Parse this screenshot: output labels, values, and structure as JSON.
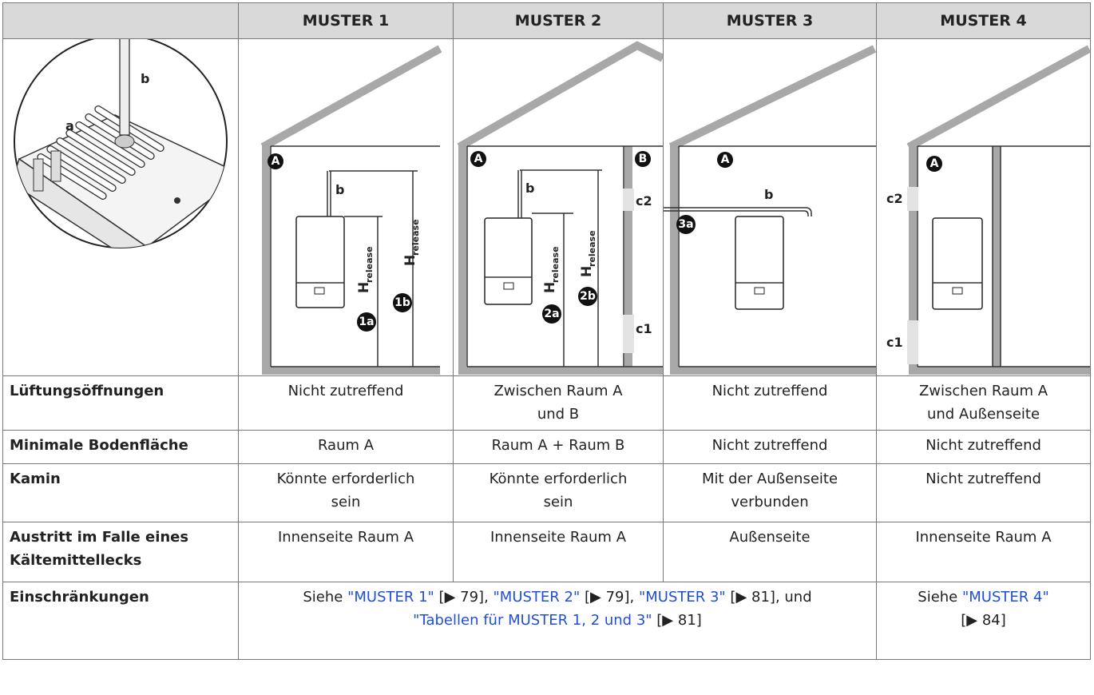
{
  "header": {
    "columns": [
      "MUSTER 1",
      "MUSTER 2",
      "MUSTER 3",
      "MUSTER 4"
    ]
  },
  "figures": {
    "detail": {
      "labels": [
        "b",
        "a"
      ]
    },
    "muster1": {
      "room": "A",
      "pipe": "b",
      "height_main": "H",
      "height_sub": "release",
      "markers": [
        "1a",
        "1b"
      ]
    },
    "muster2": {
      "rooms": [
        "A",
        "B"
      ],
      "pipe": "b",
      "height_main": "H",
      "height_sub": "release",
      "markers": [
        "2a",
        "2b"
      ],
      "vents": [
        "c2",
        "c1"
      ]
    },
    "muster3": {
      "room": "A",
      "pipe": "b",
      "markers": [
        "3a"
      ]
    },
    "muster4": {
      "room": "A",
      "vents": [
        "c2",
        "c1"
      ]
    }
  },
  "rows": [
    {
      "label": "Lüftungsöffnungen",
      "cells": [
        [
          "Nicht zutreffend"
        ],
        [
          "Zwischen Raum A",
          "und B"
        ],
        [
          "Nicht zutreffend"
        ],
        [
          "Zwischen Raum A",
          "und Außenseite"
        ]
      ]
    },
    {
      "label": "Minimale Bodenfläche",
      "cells": [
        [
          "Raum A"
        ],
        [
          "Raum A + Raum B"
        ],
        [
          "Nicht zutreffend"
        ],
        [
          "Nicht zutreffend"
        ]
      ]
    },
    {
      "label": "Kamin",
      "cells": [
        [
          "Könnte erforderlich",
          "sein"
        ],
        [
          "Könnte erforderlich",
          "sein"
        ],
        [
          "Mit der Außenseite",
          "verbunden"
        ],
        [
          "Nicht zutreffend"
        ]
      ]
    },
    {
      "label": "Austritt im Falle eines Kältemittellecks",
      "cells": [
        [
          "Innenseite Raum A"
        ],
        [
          "Innenseite Raum A"
        ],
        [
          "Außenseite"
        ],
        [
          "Innenseite Raum A"
        ]
      ]
    }
  ],
  "restrictions": {
    "label": "Einschränkungen",
    "patterns_1_3": [
      {
        "text": "Siehe "
      },
      {
        "text": "\"MUSTER 1\"",
        "link": true
      },
      {
        "text": " [▶ 79], "
      },
      {
        "text": "\"MUSTER 2\"",
        "link": true
      },
      {
        "text": " [▶ 79], "
      },
      {
        "text": "\"MUSTER 3\"",
        "link": true
      },
      {
        "text": " [▶ 81], und "
      },
      {
        "text": "\"Tabellen für MUSTER 1, 2 und 3\"",
        "link": true
      },
      {
        "text": " [▶ 81]"
      }
    ],
    "pattern_4": [
      {
        "text": "Siehe "
      },
      {
        "text": "\"MUSTER 4\"",
        "link": true
      },
      {
        "text": " [▶ 84]"
      }
    ]
  }
}
